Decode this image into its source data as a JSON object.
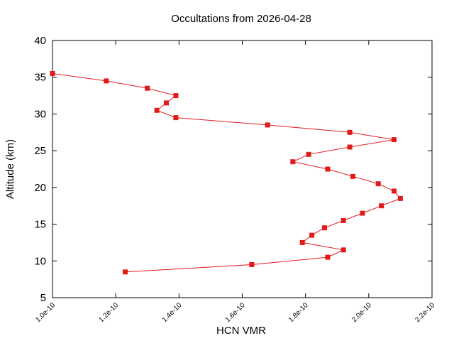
{
  "chart_data": {
    "type": "line",
    "title": "Occultations from 2026-04-28",
    "xlabel": "HCN VMR",
    "ylabel": "Altitude (km)",
    "xlim": [
      1e-10,
      2.2e-10
    ],
    "ylim": [
      5,
      40
    ],
    "x_ticks": [
      1e-10,
      1.2e-10,
      1.4e-10,
      1.6e-10,
      1.8e-10,
      2e-10,
      2.2e-10
    ],
    "x_tick_labels": [
      "1.0e-10",
      "1.2e-10",
      "1.4e-10",
      "1.6e-10",
      "1.8e-10",
      "2.0e-10",
      "2.2e-10"
    ],
    "y_ticks": [
      5,
      10,
      15,
      20,
      25,
      30,
      35,
      40
    ],
    "y_tick_labels": [
      "5",
      "10",
      "15",
      "20",
      "25",
      "30",
      "35",
      "40"
    ],
    "grid": false,
    "legend": "none",
    "series": [
      {
        "color": "#e31a1c",
        "marker": "square",
        "points": [
          {
            "x": 1e-10,
            "y": 35.5
          },
          {
            "x": 1.17e-10,
            "y": 34.5
          },
          {
            "x": 1.3e-10,
            "y": 33.5
          },
          {
            "x": 1.39e-10,
            "y": 32.5
          },
          {
            "x": 1.36e-10,
            "y": 31.5
          },
          {
            "x": 1.33e-10,
            "y": 30.5
          },
          {
            "x": 1.39e-10,
            "y": 29.5
          },
          {
            "x": 1.68e-10,
            "y": 28.5
          },
          {
            "x": 1.94e-10,
            "y": 27.5
          },
          {
            "x": 2.08e-10,
            "y": 26.5
          },
          {
            "x": 1.94e-10,
            "y": 25.5
          },
          {
            "x": 1.81e-10,
            "y": 24.5
          },
          {
            "x": 1.76e-10,
            "y": 23.5
          },
          {
            "x": 1.87e-10,
            "y": 22.5
          },
          {
            "x": 1.95e-10,
            "y": 21.5
          },
          {
            "x": 2.03e-10,
            "y": 20.5
          },
          {
            "x": 2.08e-10,
            "y": 19.5
          },
          {
            "x": 2.1e-10,
            "y": 18.5
          },
          {
            "x": 2.04e-10,
            "y": 17.5
          },
          {
            "x": 1.98e-10,
            "y": 16.5
          },
          {
            "x": 1.92e-10,
            "y": 15.5
          },
          {
            "x": 1.86e-10,
            "y": 14.5
          },
          {
            "x": 1.82e-10,
            "y": 13.5
          },
          {
            "x": 1.79e-10,
            "y": 12.5
          },
          {
            "x": 1.92e-10,
            "y": 11.5
          },
          {
            "x": 1.87e-10,
            "y": 10.5
          },
          {
            "x": 1.63e-10,
            "y": 9.5
          },
          {
            "x": 1.23e-10,
            "y": 8.5
          }
        ]
      }
    ]
  }
}
